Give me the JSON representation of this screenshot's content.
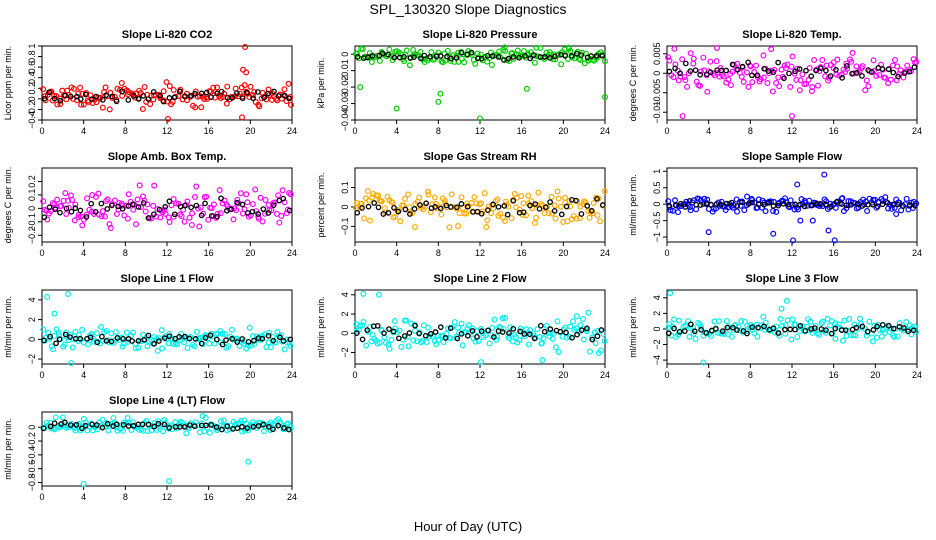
{
  "figure": {
    "title": "SPL_130320  Slope Diagnostics",
    "xlabel": "Hour of Day (UTC)"
  },
  "chart_data": [
    {
      "type": "scatter",
      "title": "Slope Li-820 CO2",
      "ylabel": "Licor ppm per min.",
      "color": "#ff0000",
      "xlim": [
        0,
        24
      ],
      "ylim": [
        -0.4,
        1.0
      ],
      "xticks": [
        0,
        4,
        8,
        12,
        16,
        20,
        24
      ],
      "yticks": [
        -0.4,
        -0.2,
        0.0,
        0.2,
        0.4,
        0.6,
        0.8,
        1.0
      ],
      "center": 0.05,
      "spread": 0.12,
      "outliers": [
        [
          19.5,
          0.98
        ],
        [
          19.3,
          0.55
        ],
        [
          19.6,
          0.5
        ],
        [
          12.1,
          -0.38
        ],
        [
          19.2,
          -0.35
        ]
      ]
    },
    {
      "type": "scatter",
      "title": "Slope Li-820 Pressure",
      "ylabel": "kPa per min.",
      "color": "#00cc00",
      "xlim": [
        0,
        24
      ],
      "ylim": [
        -0.04,
        0.005
      ],
      "xticks": [
        0,
        4,
        8,
        12,
        16,
        20,
        24
      ],
      "yticks": [
        -0.04,
        -0.03,
        -0.02,
        -0.01,
        0.0
      ],
      "center": -0.001,
      "spread": 0.003,
      "outliers": [
        [
          4,
          -0.033
        ],
        [
          8,
          -0.029
        ],
        [
          8.2,
          -0.024
        ],
        [
          12,
          -0.039
        ],
        [
          16.5,
          -0.021
        ],
        [
          20.5,
          0.004
        ],
        [
          24,
          -0.026
        ],
        [
          0.5,
          -0.02
        ]
      ]
    },
    {
      "type": "scatter",
      "title": "Slope Li-820 Temp.",
      "ylabel": "degrees C per min.",
      "color": "#ff00ff",
      "xlim": [
        0,
        24
      ],
      "ylim": [
        -0.012,
        0.007
      ],
      "xticks": [
        0,
        4,
        8,
        12,
        16,
        20,
        24
      ],
      "yticks": [
        -0.01,
        -0.005,
        0.0,
        0.005
      ],
      "center": 0.0005,
      "spread": 0.0028,
      "outliers": [
        [
          1.5,
          -0.011
        ],
        [
          12,
          -0.011
        ],
        [
          4.8,
          0.0065
        ],
        [
          10,
          0.0062
        ]
      ]
    },
    {
      "type": "scatter",
      "title": "Slope Amb. Box Temp.",
      "ylabel": "degrees C per min.",
      "color": "#ff00ff",
      "xlim": [
        0,
        24
      ],
      "ylim": [
        -0.25,
        0.3
      ],
      "xticks": [
        0,
        4,
        8,
        12,
        16,
        20,
        24
      ],
      "yticks": [
        -0.2,
        -0.1,
        0.0,
        0.1,
        0.2
      ],
      "center": 0.0,
      "spread": 0.09,
      "outliers": []
    },
    {
      "type": "scatter",
      "title": "Slope Gas Stream RH",
      "ylabel": "percent per min.",
      "color": "#ffaa00",
      "xlim": [
        0,
        24
      ],
      "ylim": [
        -0.18,
        0.2
      ],
      "xticks": [
        0,
        4,
        8,
        12,
        16,
        20,
        24
      ],
      "yticks": [
        -0.1,
        0.0,
        0.1
      ],
      "center": 0.0,
      "spread": 0.055,
      "outliers": []
    },
    {
      "type": "scatter",
      "title": "Slope Sample Flow",
      "ylabel": "ml/min per min.",
      "color": "#0000ff",
      "xlim": [
        0,
        24
      ],
      "ylim": [
        -1.15,
        1.1
      ],
      "xticks": [
        0,
        4,
        8,
        12,
        16,
        20,
        24
      ],
      "yticks": [
        -1.0,
        -0.5,
        0.0,
        0.5,
        1.0
      ],
      "center": 0.0,
      "spread": 0.12,
      "outliers": [
        [
          4,
          -0.85
        ],
        [
          10.2,
          -0.9
        ],
        [
          12.1,
          -1.1
        ],
        [
          14,
          -0.5
        ],
        [
          15.1,
          0.9
        ],
        [
          15.5,
          -0.8
        ],
        [
          16.1,
          -1.1
        ],
        [
          12.5,
          0.6
        ],
        [
          12.8,
          -0.5
        ],
        [
          22,
          -0.3
        ]
      ]
    },
    {
      "type": "scatter",
      "title": "Slope Line 1 Flow",
      "ylabel": "ml/min per min.",
      "color": "#00eeee",
      "xlim": [
        0,
        24
      ],
      "ylim": [
        -2.5,
        5.0
      ],
      "xticks": [
        0,
        4,
        8,
        12,
        16,
        20,
        24
      ],
      "yticks": [
        -2,
        0,
        2,
        4
      ],
      "center": 0.0,
      "spread": 0.6,
      "outliers": [
        [
          0.5,
          4.3
        ],
        [
          2.5,
          4.6
        ],
        [
          1.2,
          2.6
        ],
        [
          2.8,
          -2.5
        ]
      ]
    },
    {
      "type": "scatter",
      "title": "Slope Line 2 Flow",
      "ylabel": "ml/min per min.",
      "color": "#00eeee",
      "xlim": [
        0,
        24
      ],
      "ylim": [
        -3.2,
        4.5
      ],
      "xticks": [
        0,
        4,
        8,
        12,
        16,
        20,
        24
      ],
      "yticks": [
        -2,
        0,
        2,
        4
      ],
      "center": 0.0,
      "spread": 1.0,
      "outliers": [
        [
          0.8,
          4.1
        ],
        [
          2.3,
          4.0
        ],
        [
          12.1,
          -3.0
        ],
        [
          18,
          -2.8
        ]
      ]
    },
    {
      "type": "scatter",
      "title": "Slope Line 3 Flow",
      "ylabel": "ml/min per min.",
      "color": "#00eeee",
      "xlim": [
        0,
        24
      ],
      "ylim": [
        -4.5,
        5.0
      ],
      "xticks": [
        0,
        4,
        8,
        12,
        16,
        20,
        24
      ],
      "yticks": [
        -4,
        -2,
        0,
        2,
        4
      ],
      "center": 0.0,
      "spread": 0.8,
      "outliers": [
        [
          0.3,
          4.6
        ],
        [
          3.5,
          -4.3
        ],
        [
          11,
          2.6
        ],
        [
          11.5,
          3.6
        ]
      ]
    },
    {
      "type": "scatter",
      "title": "Slope Line 4 (LT) Flow",
      "ylabel": "ml/min per min.",
      "color": "#00eeee",
      "xlim": [
        0,
        24
      ],
      "ylim": [
        -0.85,
        0.22
      ],
      "xticks": [
        0,
        4,
        8,
        12,
        16,
        20,
        24
      ],
      "yticks": [
        -0.8,
        -0.6,
        -0.4,
        -0.2,
        0.0
      ],
      "center": 0.02,
      "spread": 0.07,
      "outliers": [
        [
          4,
          -0.82
        ],
        [
          12.2,
          -0.78
        ],
        [
          19.8,
          -0.5
        ],
        [
          19.5,
          -0.05
        ]
      ]
    }
  ]
}
